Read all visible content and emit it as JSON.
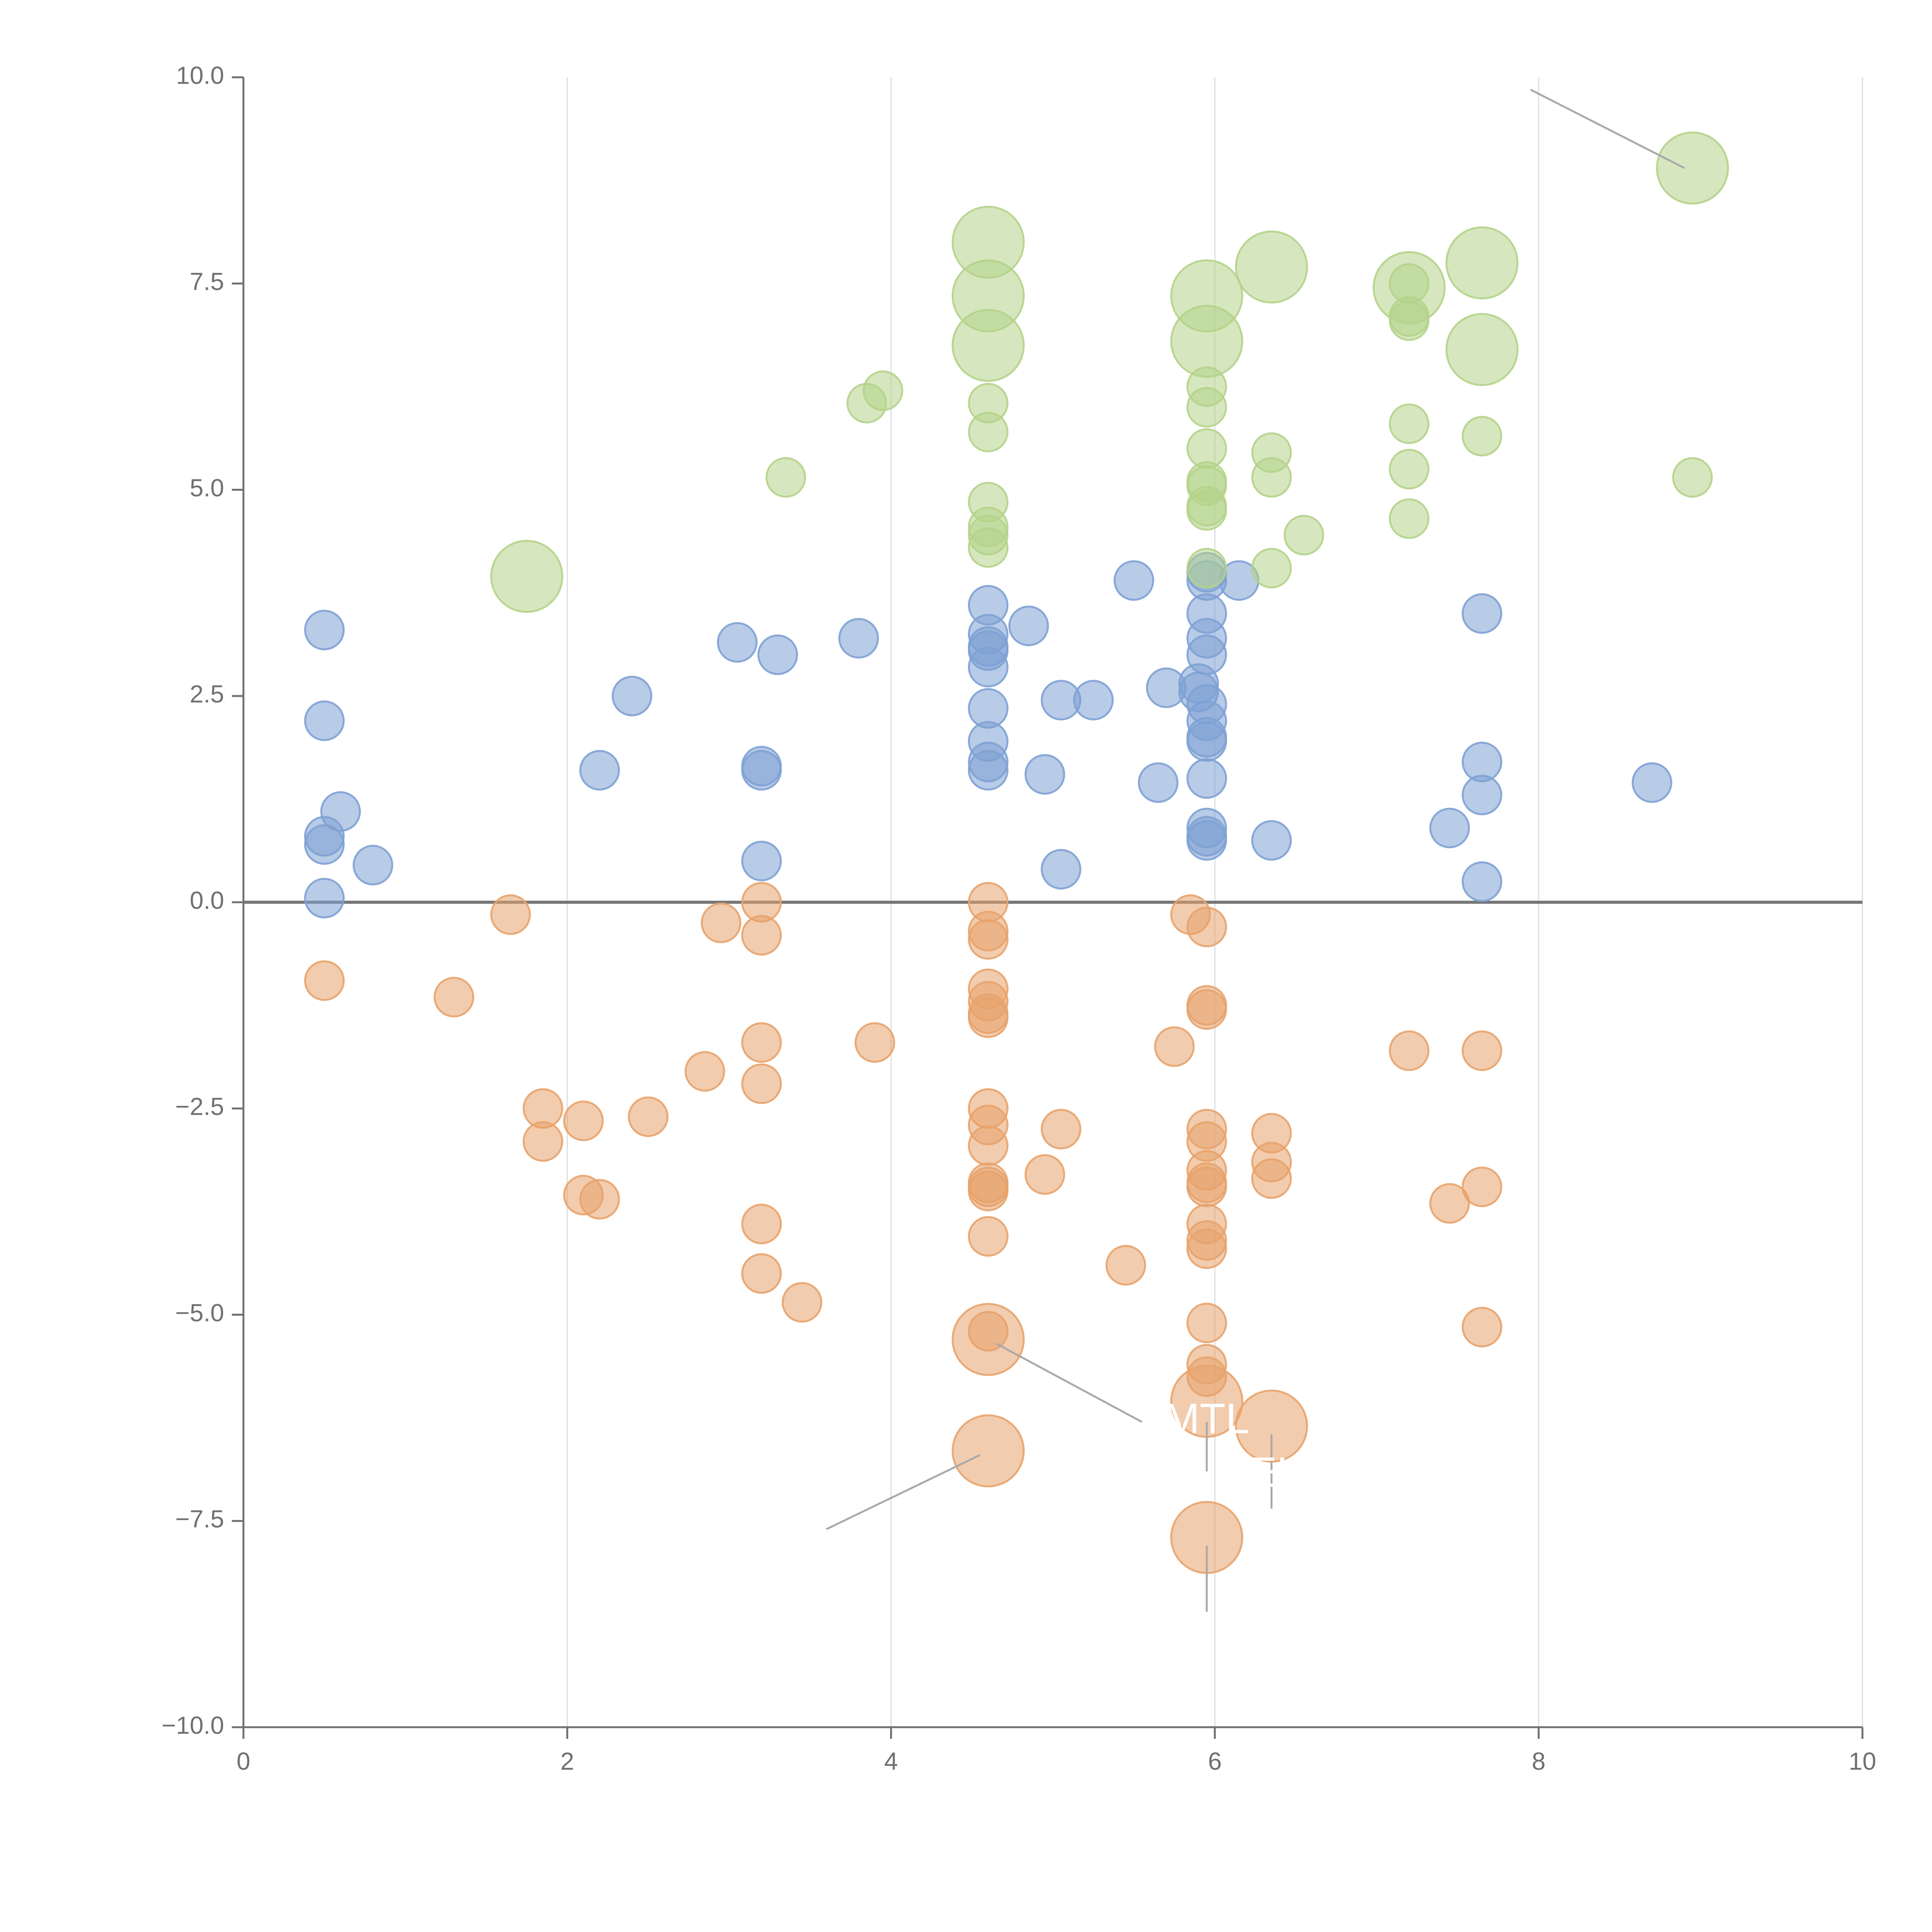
{
  "chart_data": {
    "type": "scatter",
    "title": "",
    "xlabel": "",
    "ylabel": "",
    "xlim": [
      0,
      10
    ],
    "ylim": [
      -10,
      10
    ],
    "x_ticks": [
      0,
      2,
      4,
      6,
      8,
      10
    ],
    "x_tick_labels": [
      "0",
      "2",
      "4",
      "6",
      "8",
      "10"
    ],
    "y_ticks": [
      10,
      7.5,
      5,
      2.5,
      0,
      -2.5,
      -5,
      -7.5,
      -10
    ],
    "y_tick_labels": [
      "10.0",
      "7.5",
      "5.0",
      "2.5",
      "0.0",
      "−2.5",
      "−5.0",
      "−7.5",
      "−10.0"
    ],
    "vertical_grid": true,
    "horizontal_grid": false,
    "zero_line": true,
    "colors": {
      "blue": "#7ea1d4",
      "orange": "#e8a36b",
      "green": "#b5d38a",
      "axis": "#707070",
      "zero_line": "#777777",
      "grid": "#dddddd",
      "callout_line": "#a9a9a9",
      "callout_text": "#ffffff"
    },
    "series": [
      {
        "name": "blue",
        "color": "blue",
        "points": [
          [
            0.5,
            3.3,
            1
          ],
          [
            0.5,
            2.2,
            1
          ],
          [
            0.6,
            1.1,
            1
          ],
          [
            0.5,
            0.8,
            1
          ],
          [
            0.5,
            0.7,
            1
          ],
          [
            0.8,
            0.45,
            1
          ],
          [
            0.5,
            0.05,
            1
          ],
          [
            2.2,
            1.6,
            1
          ],
          [
            2.4,
            2.5,
            1
          ],
          [
            3.05,
            3.15,
            1
          ],
          [
            3.3,
            3.0,
            1
          ],
          [
            3.2,
            1.65,
            1
          ],
          [
            3.2,
            1.6,
            1
          ],
          [
            3.2,
            0.5,
            1
          ],
          [
            3.8,
            3.2,
            1
          ],
          [
            4.6,
            3.6,
            1
          ],
          [
            4.6,
            3.25,
            1
          ],
          [
            4.6,
            3.1,
            1
          ],
          [
            4.6,
            3.05,
            1
          ],
          [
            4.6,
            2.85,
            1
          ],
          [
            4.6,
            2.35,
            1
          ],
          [
            4.6,
            1.95,
            1
          ],
          [
            4.6,
            1.7,
            1
          ],
          [
            4.6,
            1.6,
            1
          ],
          [
            4.85,
            3.35,
            1
          ],
          [
            4.95,
            1.55,
            1
          ],
          [
            5.05,
            2.45,
            1
          ],
          [
            5.05,
            0.4,
            1
          ],
          [
            5.25,
            2.45,
            1
          ],
          [
            5.5,
            3.9,
            1
          ],
          [
            5.65,
            1.45,
            1
          ],
          [
            5.7,
            2.6,
            1
          ],
          [
            5.9,
            2.55,
            1
          ],
          [
            5.9,
            2.65,
            1
          ],
          [
            5.95,
            4.0,
            1
          ],
          [
            5.95,
            3.9,
            1
          ],
          [
            5.95,
            3.5,
            1
          ],
          [
            5.95,
            3.2,
            1
          ],
          [
            5.95,
            3.0,
            1
          ],
          [
            5.95,
            2.4,
            1
          ],
          [
            5.95,
            2.2,
            1
          ],
          [
            5.95,
            2.0,
            1
          ],
          [
            5.95,
            1.95,
            1
          ],
          [
            5.95,
            1.5,
            1
          ],
          [
            5.95,
            0.9,
            1
          ],
          [
            5.95,
            0.8,
            1
          ],
          [
            5.95,
            0.75,
            1
          ],
          [
            6.15,
            3.9,
            1
          ],
          [
            6.35,
            0.75,
            1
          ],
          [
            7.45,
            0.9,
            1
          ],
          [
            7.65,
            3.5,
            1
          ],
          [
            7.65,
            1.7,
            1
          ],
          [
            7.65,
            1.3,
            1
          ],
          [
            7.65,
            0.25,
            1
          ],
          [
            8.7,
            1.45,
            1
          ]
        ]
      },
      {
        "name": "orange",
        "color": "orange",
        "points": [
          [
            0.5,
            -0.95,
            1
          ],
          [
            1.3,
            -1.15,
            1
          ],
          [
            1.65,
            -0.15,
            1
          ],
          [
            1.85,
            -2.5,
            1
          ],
          [
            1.85,
            -2.9,
            1
          ],
          [
            2.1,
            -2.65,
            1
          ],
          [
            2.1,
            -3.55,
            1
          ],
          [
            2.2,
            -3.6,
            1
          ],
          [
            2.5,
            -2.6,
            1
          ],
          [
            2.85,
            -2.05,
            1
          ],
          [
            2.95,
            -0.25,
            1
          ],
          [
            3.2,
            0.0,
            1
          ],
          [
            3.2,
            -0.4,
            1
          ],
          [
            3.2,
            -1.7,
            1
          ],
          [
            3.2,
            -2.2,
            1
          ],
          [
            3.2,
            -3.9,
            1
          ],
          [
            3.2,
            -4.5,
            1
          ],
          [
            3.45,
            -4.85,
            1
          ],
          [
            3.9,
            -1.7,
            1
          ],
          [
            4.6,
            0.0,
            1
          ],
          [
            4.6,
            -0.35,
            1
          ],
          [
            4.6,
            -0.45,
            1
          ],
          [
            4.6,
            -1.05,
            1
          ],
          [
            4.6,
            -1.2,
            1
          ],
          [
            4.6,
            -1.35,
            1
          ],
          [
            4.6,
            -1.4,
            1
          ],
          [
            4.6,
            -2.5,
            1
          ],
          [
            4.6,
            -2.7,
            1
          ],
          [
            4.6,
            -2.95,
            1
          ],
          [
            4.6,
            -3.4,
            1
          ],
          [
            4.6,
            -3.45,
            1
          ],
          [
            4.6,
            -3.5,
            1
          ],
          [
            4.6,
            -4.05,
            1
          ],
          [
            4.6,
            -5.2,
            1
          ],
          [
            4.6,
            -5.3,
            2.5
          ],
          [
            4.6,
            -6.65,
            2.5
          ],
          [
            4.95,
            -3.3,
            1
          ],
          [
            5.05,
            -2.75,
            1
          ],
          [
            5.45,
            -4.4,
            1
          ],
          [
            5.75,
            -1.75,
            1
          ],
          [
            5.85,
            -0.15,
            1
          ],
          [
            5.95,
            -0.3,
            1
          ],
          [
            5.95,
            -1.25,
            1
          ],
          [
            5.95,
            -1.3,
            1
          ],
          [
            5.95,
            -2.75,
            1
          ],
          [
            5.95,
            -2.9,
            1
          ],
          [
            5.95,
            -3.25,
            1
          ],
          [
            5.95,
            -3.4,
            1
          ],
          [
            5.95,
            -3.45,
            1
          ],
          [
            5.95,
            -3.9,
            1
          ],
          [
            5.95,
            -4.1,
            1
          ],
          [
            5.95,
            -4.2,
            1
          ],
          [
            5.95,
            -5.1,
            1
          ],
          [
            5.95,
            -5.6,
            1
          ],
          [
            5.95,
            -5.75,
            1
          ],
          [
            5.95,
            -6.05,
            2.5
          ],
          [
            5.95,
            -7.7,
            2.5
          ],
          [
            6.35,
            -2.8,
            1
          ],
          [
            6.35,
            -3.15,
            1
          ],
          [
            6.35,
            -3.35,
            1
          ],
          [
            6.35,
            -6.35,
            2.5
          ],
          [
            7.2,
            -1.8,
            1
          ],
          [
            7.45,
            -3.65,
            1
          ],
          [
            7.65,
            -1.8,
            1
          ],
          [
            7.65,
            -3.45,
            1
          ],
          [
            7.65,
            -5.15,
            1
          ]
        ]
      },
      {
        "name": "green",
        "color": "green",
        "points": [
          [
            1.75,
            3.95,
            2.5
          ],
          [
            3.35,
            5.15,
            1
          ],
          [
            3.85,
            6.05,
            1
          ],
          [
            3.95,
            6.2,
            1
          ],
          [
            4.6,
            8.0,
            2.5
          ],
          [
            4.6,
            7.35,
            2.5
          ],
          [
            4.6,
            6.75,
            2.5
          ],
          [
            4.6,
            6.05,
            1
          ],
          [
            4.6,
            5.7,
            1
          ],
          [
            4.6,
            4.85,
            1
          ],
          [
            4.6,
            4.55,
            1
          ],
          [
            4.6,
            4.45,
            1
          ],
          [
            4.6,
            4.3,
            1
          ],
          [
            5.95,
            7.35,
            2.5
          ],
          [
            5.95,
            6.8,
            2.5
          ],
          [
            5.95,
            6.25,
            1
          ],
          [
            5.95,
            6.0,
            1
          ],
          [
            5.95,
            5.5,
            1
          ],
          [
            5.95,
            5.1,
            1
          ],
          [
            5.95,
            5.05,
            1
          ],
          [
            5.95,
            4.75,
            1
          ],
          [
            5.95,
            4.8,
            1
          ],
          [
            5.95,
            4.05,
            1
          ],
          [
            6.35,
            7.7,
            2.5
          ],
          [
            6.35,
            5.45,
            1
          ],
          [
            6.35,
            5.15,
            1
          ],
          [
            6.35,
            4.05,
            1
          ],
          [
            6.55,
            4.45,
            1
          ],
          [
            7.2,
            7.45,
            2.5
          ],
          [
            7.2,
            7.5,
            1
          ],
          [
            7.2,
            7.1,
            1
          ],
          [
            7.2,
            7.05,
            1
          ],
          [
            7.2,
            5.8,
            1
          ],
          [
            7.2,
            5.25,
            1
          ],
          [
            7.2,
            4.65,
            1
          ],
          [
            7.65,
            7.75,
            2.5
          ],
          [
            7.65,
            6.7,
            2.5
          ],
          [
            7.65,
            5.65,
            1
          ],
          [
            8.95,
            8.9,
            2.5
          ],
          [
            8.95,
            5.15,
            1
          ]
        ]
      }
    ],
    "callouts": [
      {
        "label": "",
        "from": [
          8.9,
          8.9
        ],
        "to": [
          7.95,
          9.85
        ],
        "text_at": [
          7.9,
          9.9
        ]
      },
      {
        "label": "",
        "from": [
          4.65,
          -5.35
        ],
        "to": [
          5.55,
          -6.3
        ],
        "text_at": [
          5.6,
          -6.3
        ]
      },
      {
        "label": "",
        "from": [
          4.55,
          -6.7
        ],
        "to": [
          3.6,
          -7.6
        ],
        "text_at": [
          3.55,
          -7.7
        ]
      },
      {
        "label": "",
        "from": [
          5.95,
          -6.3
        ],
        "to": [
          5.95,
          -6.9
        ],
        "text_at": [
          5.95,
          -7.0
        ]
      },
      {
        "label": "",
        "from": [
          6.35,
          -6.45
        ],
        "to": [
          6.35,
          -7.35
        ],
        "text_at": [
          6.35,
          -7.45
        ]
      },
      {
        "label": "",
        "from": [
          5.95,
          -7.8
        ],
        "to": [
          5.95,
          -8.6
        ],
        "text_at": [
          5.95,
          -8.75
        ]
      }
    ],
    "white_labels": [
      {
        "text": "MTL",
        "at": [
          5.95,
          -6.3
        ]
      },
      {
        "text": "EEL",
        "at": [
          6.28,
          -6.95
        ]
      }
    ]
  }
}
